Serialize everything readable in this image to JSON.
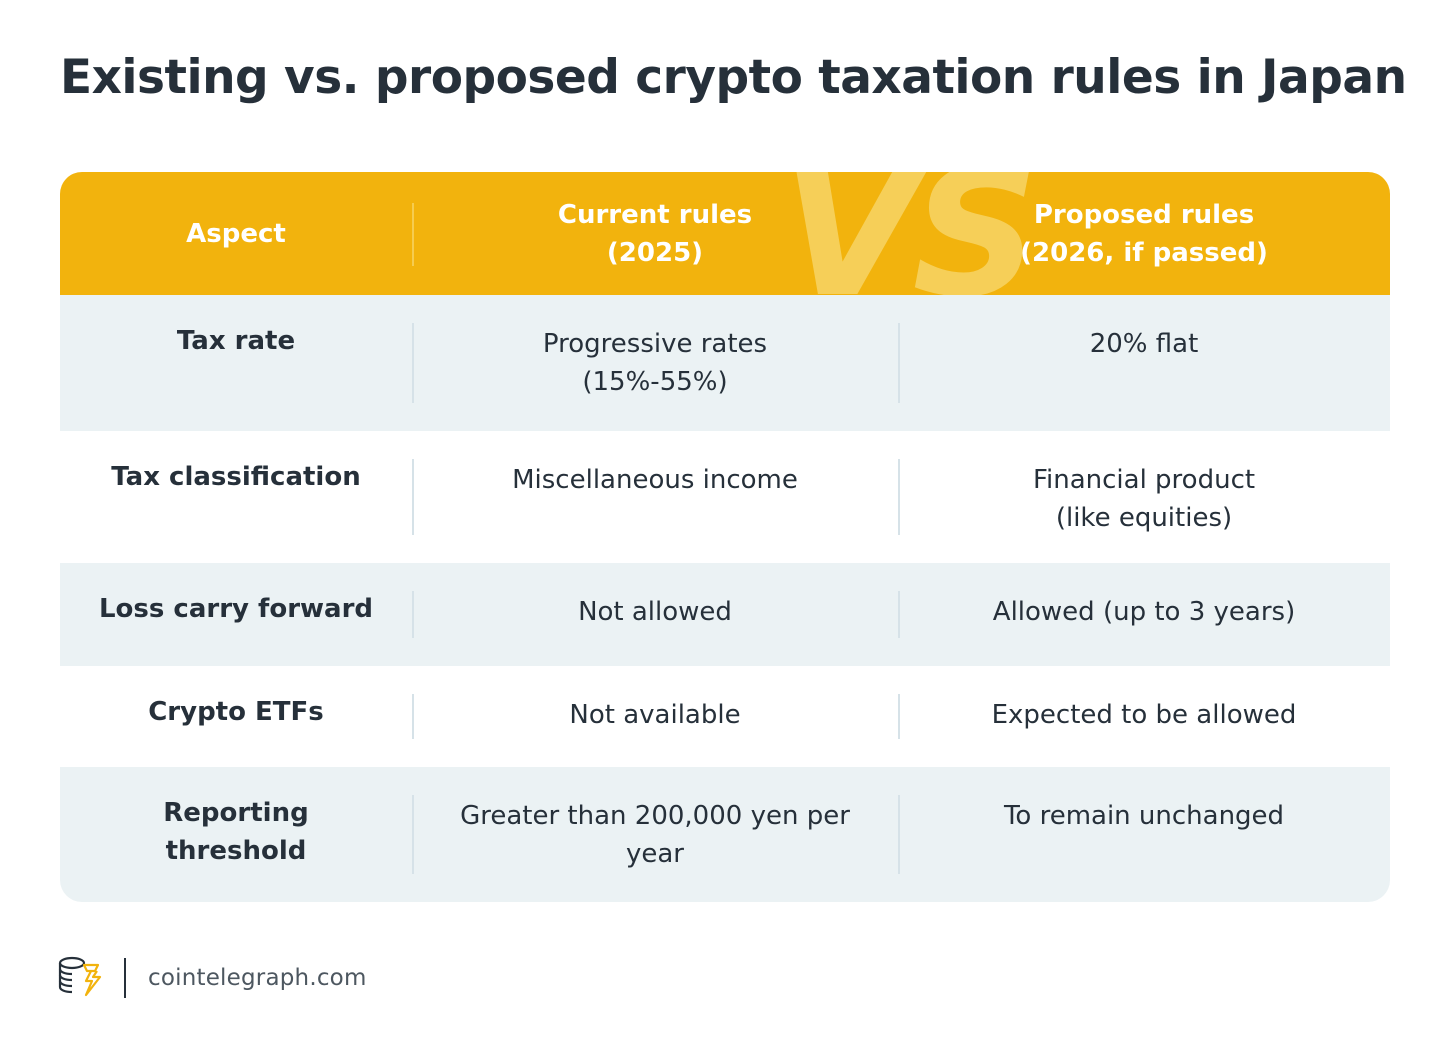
{
  "title": "Existing vs. proposed crypto taxation rules in Japan",
  "colors": {
    "header_bg": "#f2b30d",
    "shaded_row": "#ebf2f4",
    "text": "#26303a"
  },
  "watermark": "VS",
  "header": {
    "aspect": "Aspect",
    "current_line1": "Current rules",
    "current_line2": "(2025)",
    "proposed_line1": "Proposed rules",
    "proposed_line2": "(2026, if passed)"
  },
  "rows": [
    {
      "aspect": "Tax rate",
      "current": [
        "Progressive rates",
        "(15%-55%)"
      ],
      "proposed": [
        "20% flat"
      ]
    },
    {
      "aspect": "Tax classification",
      "current": [
        "Miscellaneous income"
      ],
      "proposed": [
        "Financial product",
        "(like equities)"
      ]
    },
    {
      "aspect": "Loss carry forward",
      "current": [
        "Not allowed"
      ],
      "proposed": [
        "Allowed (up to 3 years)"
      ]
    },
    {
      "aspect": "Crypto ETFs",
      "current": [
        "Not available"
      ],
      "proposed": [
        "Expected to be allowed"
      ]
    },
    {
      "aspect": "Reporting threshold",
      "current": [
        "Greater than 200,000 yen per",
        "year"
      ],
      "proposed": [
        "To remain unchanged"
      ]
    }
  ],
  "footer": {
    "logo_icon": "cointelegraph-logo-icon",
    "site": "cointelegraph.com"
  }
}
